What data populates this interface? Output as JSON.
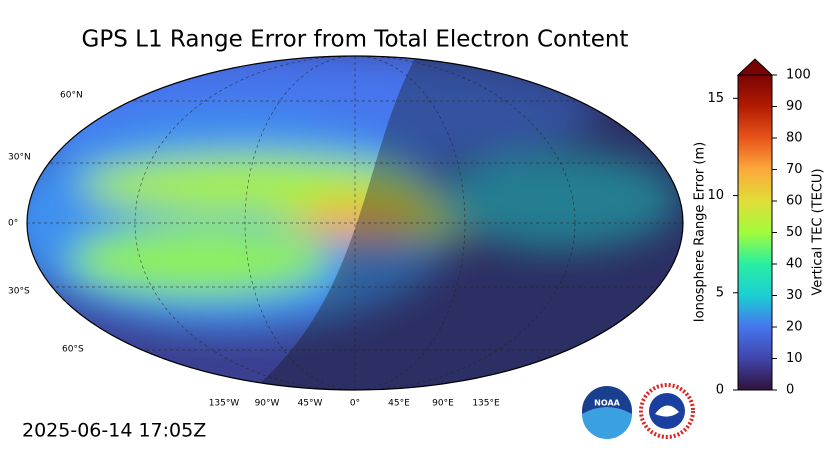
{
  "title": "GPS L1 Range Error from Total Electron Content",
  "timestamp": "2025-06-14 17:05Z",
  "map": {
    "lat_labels": [
      "60°N",
      "30°N",
      "0°",
      "30°S",
      "60°S"
    ],
    "lon_labels": [
      "135°W",
      "90°W",
      "45°W",
      "0°",
      "45°E",
      "90°E",
      "135°E"
    ]
  },
  "colorbar": {
    "left_label": "Ionosphere Range Error (m)",
    "left_lim": [
      0,
      16.2
    ],
    "left_ticks": [
      0,
      5,
      10,
      15
    ],
    "right_label": "Vertical TEC (TECU)",
    "right_lim": [
      0,
      100
    ],
    "right_ticks": [
      0,
      10,
      20,
      30,
      40,
      50,
      60,
      70,
      80,
      90,
      100
    ]
  },
  "logos": {
    "noaa": "NOAA"
  }
}
